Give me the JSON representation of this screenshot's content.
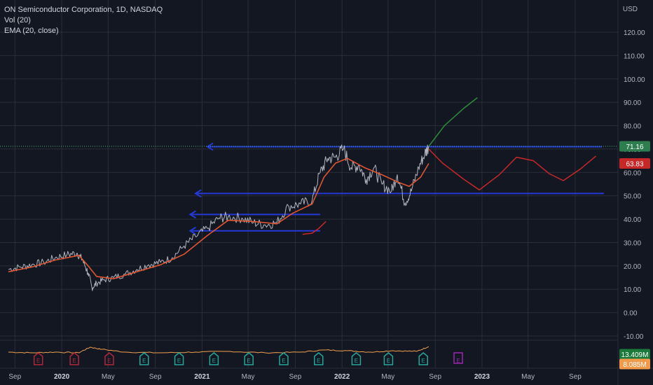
{
  "legend": {
    "symbol": "ON Semiconductor Corporation, 1D, NASDAQ",
    "vol": "Vol (20)",
    "ema": "EMA (20, close)"
  },
  "currency": "USD",
  "colors": {
    "background": "#131722",
    "grid": "#2a2e39",
    "price_line": "#b2b5be",
    "ema_line": "#e0552f",
    "volume_line": "#f0a050",
    "support_line": "#2439d6",
    "projection_red": "#c62828",
    "projection_green": "#2e8b3a",
    "current_price_badge": "#2e7d4f",
    "ema_badge": "#c62828",
    "volume_badge": "#1b7a3a",
    "volume_ma_badge": "#f2994a",
    "earnings_past_red": "#b2283a",
    "earnings_past_teal": "#26a69a",
    "earnings_future": "#9c27b0"
  },
  "chart_data": {
    "type": "line",
    "title": "ON Semiconductor Corporation, 1D, NASDAQ",
    "ylabel": "USD",
    "ylim": [
      -15,
      127
    ],
    "yticks": [
      "120.00",
      "110.00",
      "100.00",
      "90.00",
      "80.00",
      "70.00",
      "60.00",
      "50.00",
      "40.00",
      "30.00",
      "20.00",
      "10.00",
      "0.00",
      "-10.00"
    ],
    "xticks": [
      "Sep",
      "2020",
      "May",
      "Sep",
      "2021",
      "May",
      "Sep",
      "2022",
      "May",
      "Sep",
      "2023",
      "May",
      "Sep"
    ],
    "xtick_years": [
      "2020",
      "2021",
      "2022",
      "2023"
    ],
    "x_start": "2019-08-15",
    "x_end": "2023-11-15",
    "grid": true,
    "series": [
      {
        "name": "ON Semiconductor Corporation",
        "points": [
          [
            "2019-08-15",
            18.5
          ],
          [
            "2019-09-15",
            19.5
          ],
          [
            "2019-10-15",
            20.5
          ],
          [
            "2019-11-15",
            21.5
          ],
          [
            "2019-12-15",
            23.5
          ],
          [
            "2020-01-15",
            24.8
          ],
          [
            "2020-02-10",
            25.5
          ],
          [
            "2020-02-25",
            22.5
          ],
          [
            "2020-03-10",
            17.0
          ],
          [
            "2020-03-20",
            10.5
          ],
          [
            "2020-04-01",
            12.5
          ],
          [
            "2020-04-20",
            14.0
          ],
          [
            "2020-05-15",
            15.0
          ],
          [
            "2020-06-15",
            16.5
          ],
          [
            "2020-07-15",
            18.5
          ],
          [
            "2020-08-15",
            20.5
          ],
          [
            "2020-09-15",
            21.5
          ],
          [
            "2020-10-15",
            23.5
          ],
          [
            "2020-11-15",
            28.5
          ],
          [
            "2020-12-15",
            32.5
          ],
          [
            "2021-01-15",
            36.0
          ],
          [
            "2021-02-15",
            40.5
          ],
          [
            "2021-03-10",
            41.0
          ],
          [
            "2021-04-15",
            40.5
          ],
          [
            "2021-05-15",
            38.5
          ],
          [
            "2021-06-15",
            37.5
          ],
          [
            "2021-07-15",
            38.5
          ],
          [
            "2021-08-15",
            45.5
          ],
          [
            "2021-09-15",
            46.5
          ],
          [
            "2021-10-15",
            48.0
          ],
          [
            "2021-11-05",
            60.0
          ],
          [
            "2021-11-25",
            66.0
          ],
          [
            "2021-12-15",
            66.5
          ],
          [
            "2022-01-05",
            70.0
          ],
          [
            "2022-01-25",
            62.0
          ],
          [
            "2022-02-15",
            63.0
          ],
          [
            "2022-03-05",
            57.0
          ],
          [
            "2022-03-25",
            62.0
          ],
          [
            "2022-04-15",
            55.0
          ],
          [
            "2022-05-10",
            52.0
          ],
          [
            "2022-05-25",
            59.0
          ],
          [
            "2022-06-15",
            47.0
          ],
          [
            "2022-07-01",
            52.0
          ],
          [
            "2022-07-20",
            62.0
          ],
          [
            "2022-08-05",
            68.0
          ],
          [
            "2022-08-15",
            71.16
          ]
        ]
      },
      {
        "name": "EMA (20, close)",
        "points": [
          [
            "2019-08-15",
            17.5
          ],
          [
            "2019-10-15",
            19.5
          ],
          [
            "2019-12-15",
            22.5
          ],
          [
            "2020-02-15",
            24.5
          ],
          [
            "2020-03-10",
            20.0
          ],
          [
            "2020-04-01",
            15.5
          ],
          [
            "2020-05-15",
            14.5
          ],
          [
            "2020-07-15",
            17.5
          ],
          [
            "2020-09-15",
            20.5
          ],
          [
            "2020-11-15",
            25.0
          ],
          [
            "2021-01-15",
            33.0
          ],
          [
            "2021-03-10",
            39.5
          ],
          [
            "2021-05-15",
            39.0
          ],
          [
            "2021-07-15",
            38.0
          ],
          [
            "2021-08-25",
            42.5
          ],
          [
            "2021-10-15",
            46.5
          ],
          [
            "2021-11-15",
            58.0
          ],
          [
            "2021-12-15",
            64.0
          ],
          [
            "2022-01-15",
            66.0
          ],
          [
            "2022-03-01",
            62.0
          ],
          [
            "2022-04-15",
            59.0
          ],
          [
            "2022-05-25",
            56.0
          ],
          [
            "2022-06-25",
            54.0
          ],
          [
            "2022-07-25",
            58.0
          ],
          [
            "2022-08-15",
            63.83
          ]
        ]
      },
      {
        "name": "Vol (20)",
        "volume_M": [
          [
            "2019-08-15",
            9.5
          ],
          [
            "2019-10-15",
            9.0
          ],
          [
            "2019-12-15",
            9.5
          ],
          [
            "2020-02-15",
            9.0
          ],
          [
            "2020-03-15",
            13.0
          ],
          [
            "2020-04-15",
            11.5
          ],
          [
            "2020-06-15",
            9.5
          ],
          [
            "2020-09-15",
            9.0
          ],
          [
            "2020-12-15",
            9.5
          ],
          [
            "2021-03-15",
            10.0
          ],
          [
            "2021-06-15",
            9.0
          ],
          [
            "2021-09-15",
            9.5
          ],
          [
            "2021-11-15",
            11.0
          ],
          [
            "2022-01-15",
            10.5
          ],
          [
            "2022-03-15",
            9.5
          ],
          [
            "2022-05-15",
            10.5
          ],
          [
            "2022-07-15",
            10.0
          ],
          [
            "2022-08-15",
            13.409
          ]
        ]
      }
    ],
    "drawings": {
      "horizontal_levels": [
        {
          "value": 71.0,
          "from": "2021-01-15",
          "to": "2023-11-10"
        },
        {
          "value": 51.0,
          "from": "2020-12-15",
          "to": "2023-11-15"
        },
        {
          "value": 42.0,
          "from": "2020-12-01",
          "to": "2021-11-05"
        },
        {
          "value": 35.0,
          "from": "2020-12-01",
          "to": "2021-11-05"
        }
      ],
      "projection_green": [
        [
          "2022-08-15",
          71.16
        ],
        [
          "2022-09-25",
          80.0
        ],
        [
          "2022-11-15",
          87.5
        ],
        [
          "2022-12-20",
          92.0
        ]
      ],
      "projection_red": [
        [
          "2022-08-15",
          70.0
        ],
        [
          "2022-09-20",
          64.0
        ],
        [
          "2022-11-15",
          57.0
        ],
        [
          "2022-12-25",
          52.5
        ],
        [
          "2023-02-15",
          59.0
        ],
        [
          "2023-04-01",
          66.5
        ],
        [
          "2023-05-15",
          65.0
        ],
        [
          "2023-06-25",
          59.5
        ],
        [
          "2023-08-01",
          56.5
        ],
        [
          "2023-09-15",
          61.5
        ],
        [
          "2023-10-25",
          67.0
        ]
      ],
      "small_red_curve": [
        [
          "2021-09-20",
          33.5
        ],
        [
          "2021-10-15",
          34.0
        ],
        [
          "2021-11-01",
          36.0
        ],
        [
          "2021-11-20",
          39.0
        ]
      ]
    },
    "price_labels": {
      "last": "71.16",
      "ema": "63.83",
      "volume": "13.409M",
      "volume_ma": "8.085M"
    },
    "earnings": [
      {
        "date": "2019-11-01",
        "kind": "past_red"
      },
      {
        "date": "2020-02-03",
        "kind": "past_red"
      },
      {
        "date": "2020-05-04",
        "kind": "past_red"
      },
      {
        "date": "2020-08-03",
        "kind": "past_teal"
      },
      {
        "date": "2020-11-02",
        "kind": "past_teal"
      },
      {
        "date": "2021-02-01",
        "kind": "past_teal"
      },
      {
        "date": "2021-05-03",
        "kind": "past_teal"
      },
      {
        "date": "2021-08-02",
        "kind": "past_teal"
      },
      {
        "date": "2021-11-01",
        "kind": "past_teal"
      },
      {
        "date": "2022-02-07",
        "kind": "past_teal"
      },
      {
        "date": "2022-05-02",
        "kind": "past_teal"
      },
      {
        "date": "2022-08-01",
        "kind": "past_teal"
      },
      {
        "date": "2022-10-31",
        "kind": "future"
      }
    ],
    "earnings_label": "E"
  }
}
